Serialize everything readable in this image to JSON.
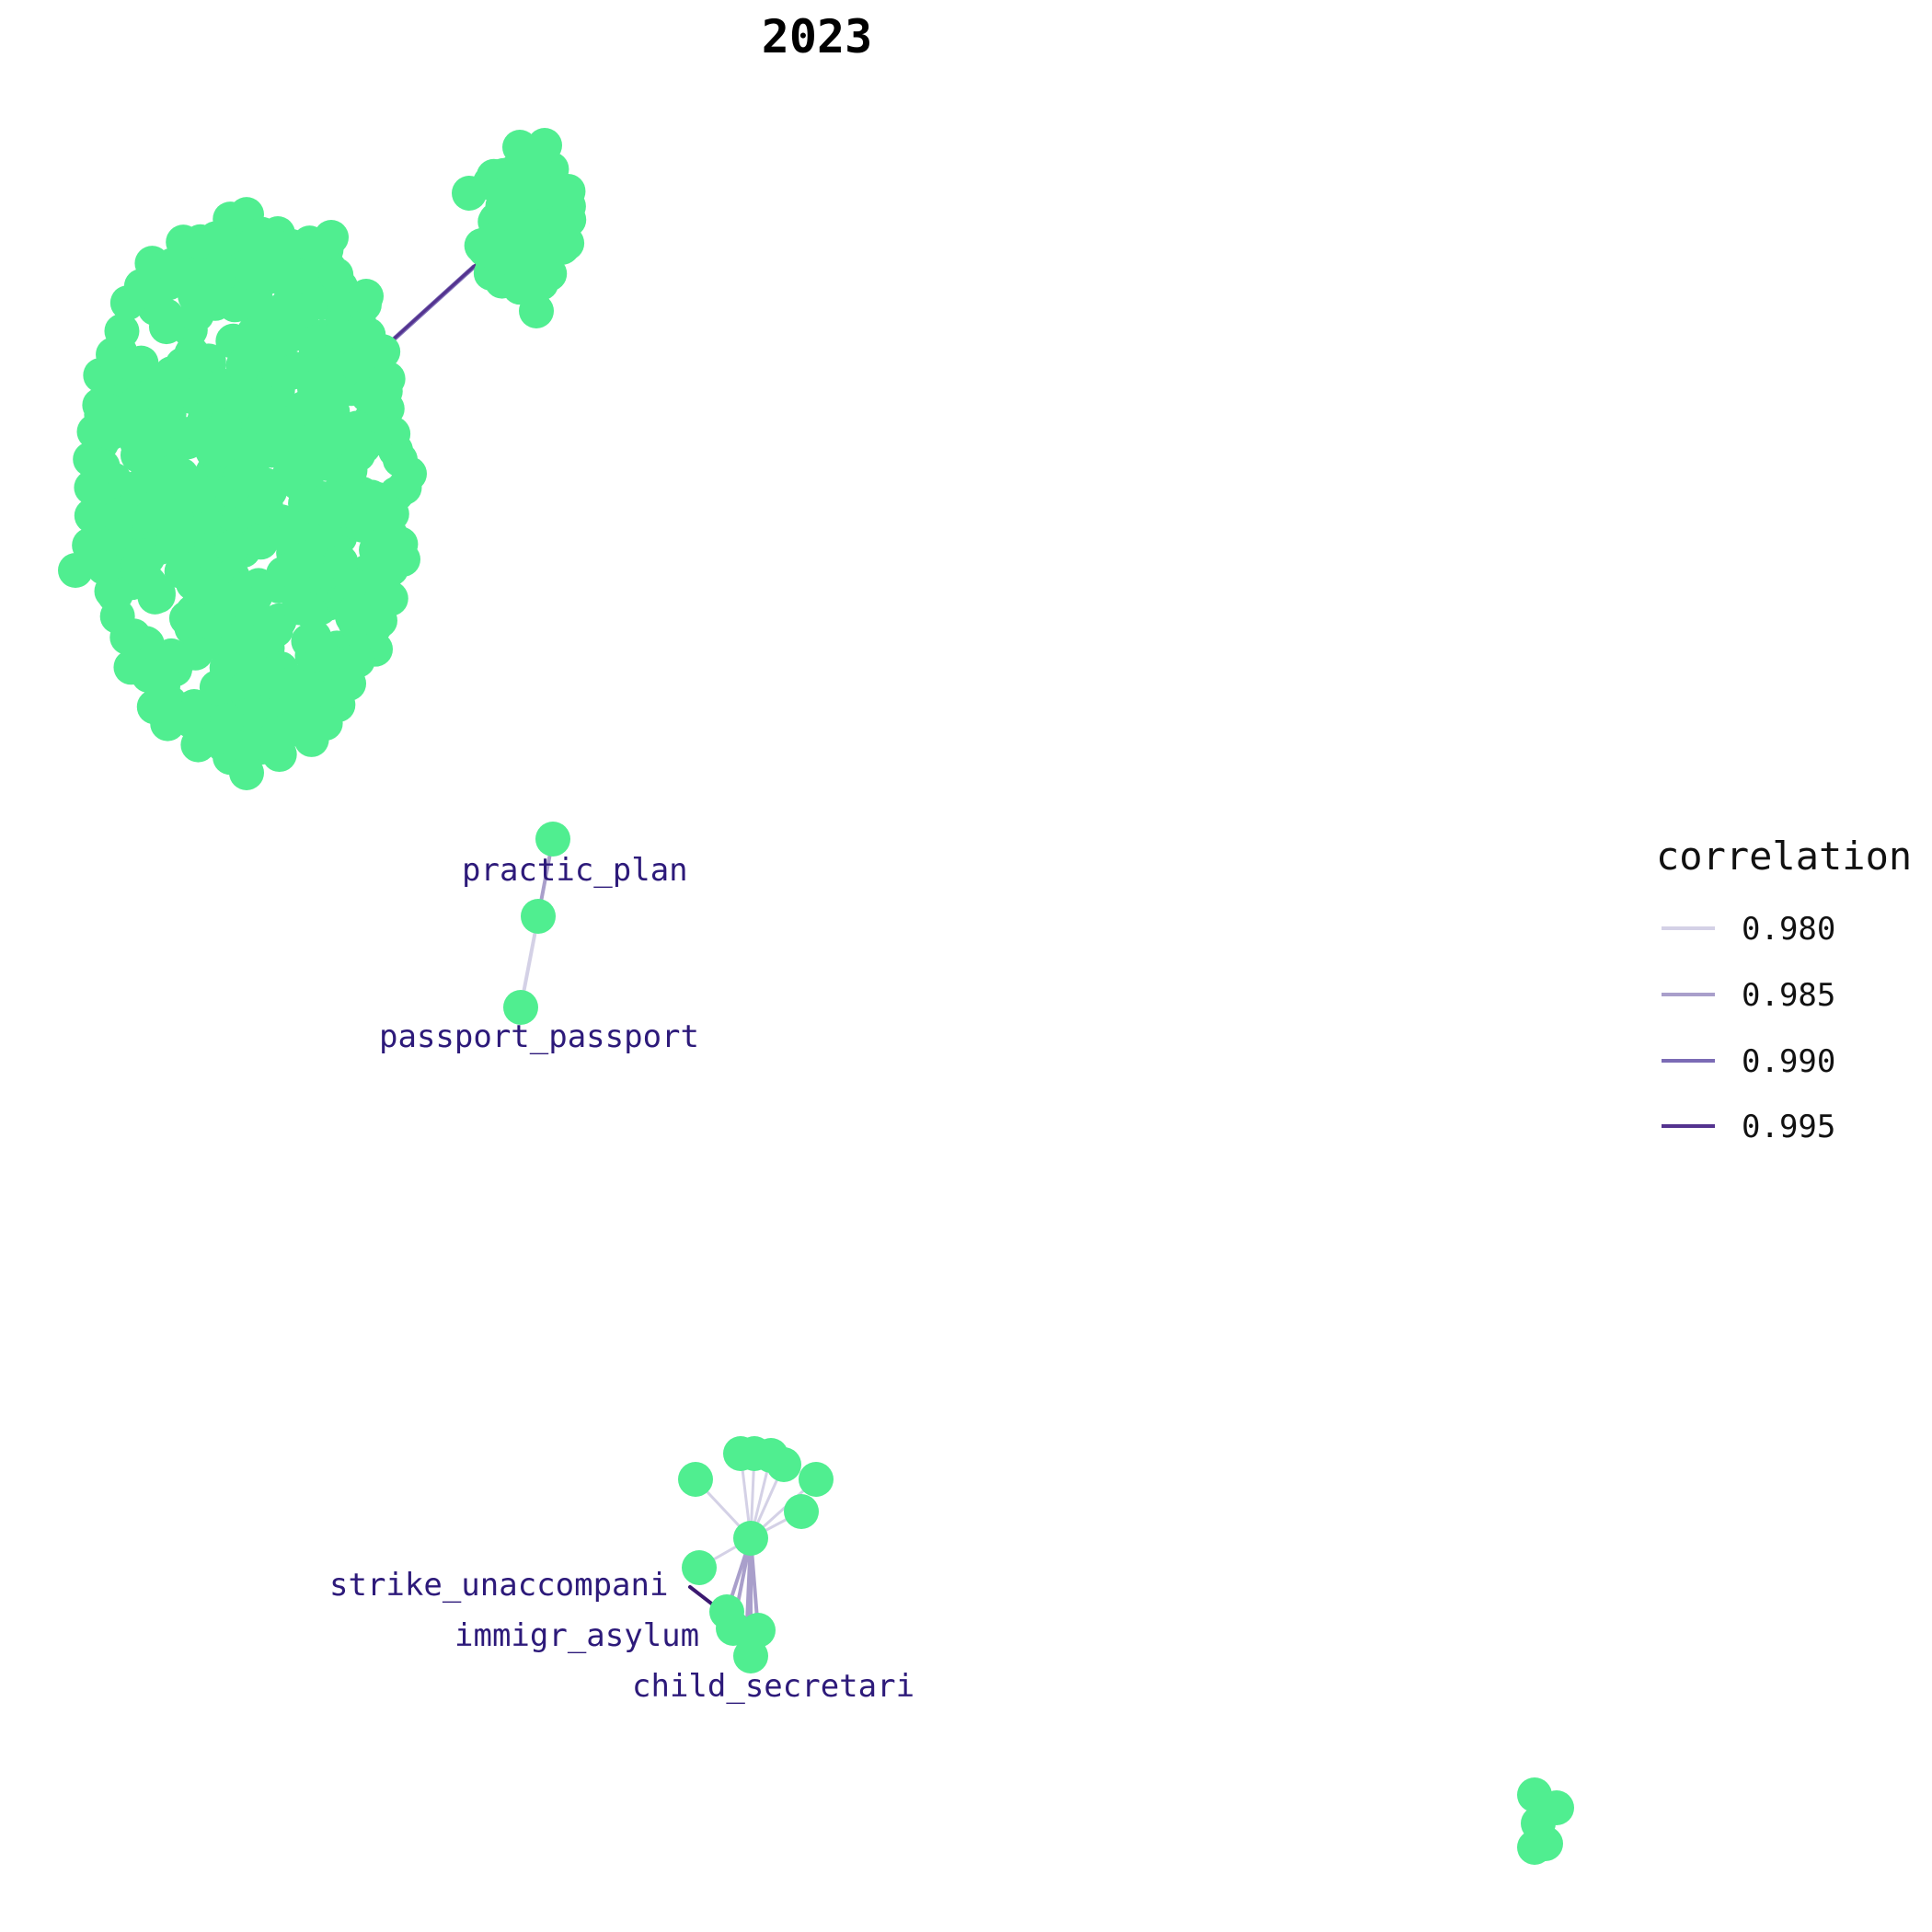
{
  "title": "2023",
  "colors": {
    "node": "#50EE90",
    "label": "#2D1A7A",
    "edge_scale": [
      "#D4D1E6",
      "#A99FCB",
      "#7B6BB5",
      "#54338F"
    ],
    "edge_strong": "#3B1870"
  },
  "labels": {
    "practic_plan": "practic_plan",
    "passport_passport": "passport_passport",
    "strike_unaccompani": "strike_unaccompani",
    "immigr_asylum": "immigr_asylum",
    "child_secretari": "child_secretari"
  },
  "legend": {
    "title": "correlation",
    "items": [
      {
        "label": "0.980",
        "color": "#D4D1E6"
      },
      {
        "label": "0.985",
        "color": "#A99FCB"
      },
      {
        "label": "0.990",
        "color": "#7B6BB5"
      },
      {
        "label": "0.995",
        "color": "#54338F"
      }
    ]
  }
}
